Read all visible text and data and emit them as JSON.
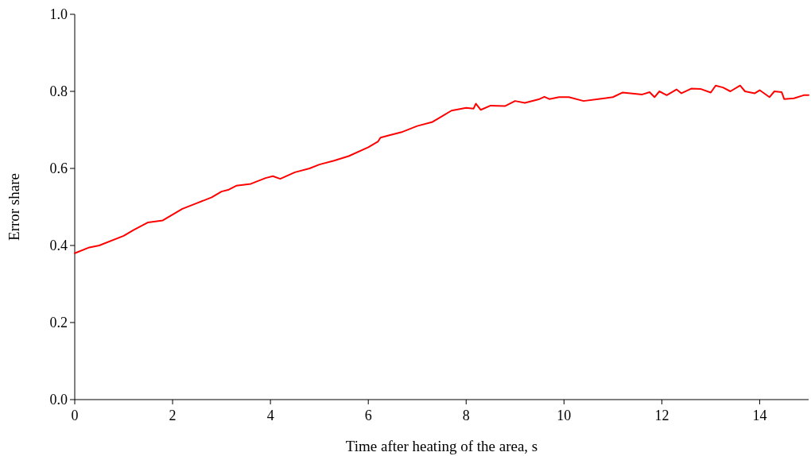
{
  "chart_data": {
    "type": "line",
    "xlabel": "Time after heating of the area, s",
    "ylabel": "Error share",
    "xlim": [
      0,
      15
    ],
    "xticks": [
      0,
      2,
      4,
      6,
      8,
      10,
      12,
      14
    ],
    "ylim": [
      0,
      1
    ],
    "yticks": [
      {
        "value": 0,
        "label": "0.0"
      },
      0.2,
      0.4,
      0.6,
      0.8,
      {
        "value": 1,
        "label": "1.0"
      }
    ],
    "grid": false,
    "marker": "none",
    "line_style": "solid",
    "series": [
      {
        "color": "#ff0000",
        "x": [
          0,
          0.3,
          0.5,
          1.0,
          1.2,
          1.5,
          1.8,
          2.0,
          2.2,
          2.5,
          2.8,
          3.0,
          3.15,
          3.3,
          3.6,
          3.9,
          4.05,
          4.2,
          4.5,
          4.8,
          5.0,
          5.3,
          5.6,
          6.0,
          6.2,
          6.25,
          6.4,
          6.7,
          7.0,
          7.3,
          7.5,
          7.7,
          8.0,
          8.15,
          8.2,
          8.3,
          8.5,
          8.8,
          9.0,
          9.2,
          9.5,
          9.6,
          9.7,
          9.9,
          10.1,
          10.4,
          10.7,
          11.0,
          11.2,
          11.6,
          11.75,
          11.85,
          11.95,
          12.1,
          12.3,
          12.4,
          12.6,
          12.8,
          13.0,
          13.1,
          13.25,
          13.4,
          13.6,
          13.7,
          13.9,
          14.0,
          14.2,
          14.3,
          14.45,
          14.5,
          14.7,
          14.9,
          15.0
        ],
        "values": [
          0.38,
          0.395,
          0.4,
          0.425,
          0.44,
          0.46,
          0.465,
          0.48,
          0.495,
          0.51,
          0.525,
          0.54,
          0.545,
          0.555,
          0.56,
          0.575,
          0.58,
          0.573,
          0.59,
          0.6,
          0.61,
          0.62,
          0.632,
          0.655,
          0.67,
          0.68,
          0.685,
          0.695,
          0.71,
          0.72,
          0.735,
          0.75,
          0.757,
          0.755,
          0.768,
          0.752,
          0.763,
          0.762,
          0.775,
          0.77,
          0.78,
          0.786,
          0.78,
          0.785,
          0.785,
          0.775,
          0.78,
          0.785,
          0.797,
          0.792,
          0.798,
          0.785,
          0.8,
          0.79,
          0.805,
          0.795,
          0.807,
          0.806,
          0.797,
          0.815,
          0.81,
          0.8,
          0.815,
          0.8,
          0.795,
          0.803,
          0.785,
          0.8,
          0.798,
          0.78,
          0.782,
          0.79,
          0.79
        ]
      }
    ]
  }
}
